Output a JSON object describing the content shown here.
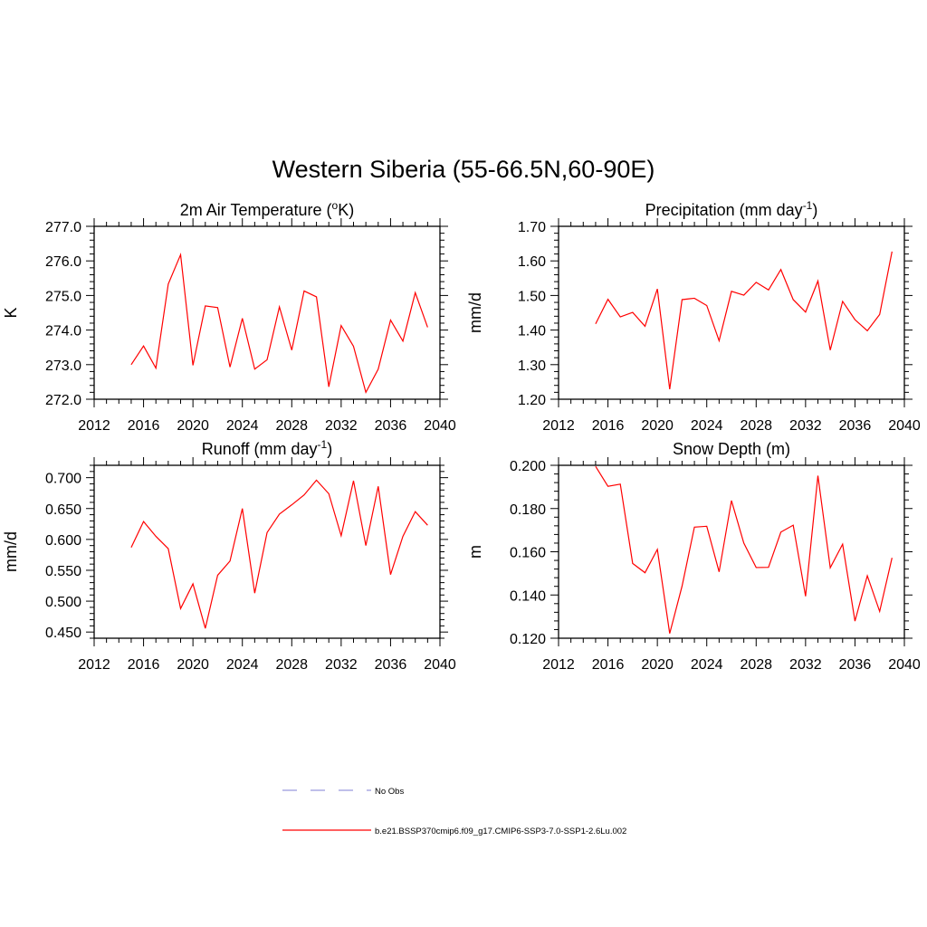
{
  "figure": {
    "title": "Western Siberia (55-66.5N,60-90E)"
  },
  "colors": {
    "series": "#ff0000",
    "obs": "#9999dd",
    "axis": "#000000"
  },
  "chart_data": [
    {
      "type": "line",
      "title": "2m Air Temperature (",
      "title_sup": "o",
      "title_after": "K)",
      "xlabel": "",
      "ylabel": "K",
      "xlim": [
        2012,
        2040
      ],
      "ylim": [
        272.0,
        277.0
      ],
      "xticks": [
        2012,
        2016,
        2020,
        2024,
        2028,
        2032,
        2036,
        2040
      ],
      "yticks": [
        "272.0",
        "273.0",
        "274.0",
        "275.0",
        "276.0",
        "277.0"
      ],
      "x": [
        2015,
        2016,
        2017,
        2018,
        2019,
        2020,
        2021,
        2022,
        2023,
        2024,
        2025,
        2026,
        2027,
        2028,
        2029,
        2030,
        2031,
        2032,
        2033,
        2034,
        2035,
        2036,
        2037,
        2038,
        2039
      ],
      "series": [
        {
          "name": "b.e21.BSSP370cmip6.f09_g17.CMIP6-SSP3-7.0-SSP1-2.6Lu.002",
          "values": [
            273.0,
            273.54,
            272.9,
            275.33,
            276.18,
            272.98,
            274.7,
            274.65,
            272.93,
            274.34,
            272.87,
            273.14,
            274.67,
            273.42,
            275.13,
            274.96,
            272.36,
            274.13,
            273.53,
            272.2,
            272.87,
            274.29,
            273.68,
            275.08,
            274.08
          ]
        }
      ]
    },
    {
      "type": "line",
      "title": "Precipitation (mm day",
      "title_sup": "-1",
      "title_after": ")",
      "xlabel": "",
      "ylabel": "mm/d",
      "xlim": [
        2012,
        2040
      ],
      "ylim": [
        1.2,
        1.7
      ],
      "xticks": [
        2012,
        2016,
        2020,
        2024,
        2028,
        2032,
        2036,
        2040
      ],
      "yticks": [
        "1.20",
        "1.30",
        "1.40",
        "1.50",
        "1.60",
        "1.70"
      ],
      "x": [
        2015,
        2016,
        2017,
        2018,
        2019,
        2020,
        2021,
        2022,
        2023,
        2024,
        2025,
        2026,
        2027,
        2028,
        2029,
        2030,
        2031,
        2032,
        2033,
        2034,
        2035,
        2036,
        2037,
        2038,
        2039
      ],
      "series": [
        {
          "name": "b.e21.BSSP370cmip6.f09_g17.CMIP6-SSP3-7.0-SSP1-2.6Lu.002",
          "values": [
            1.418,
            1.489,
            1.438,
            1.451,
            1.411,
            1.519,
            1.229,
            1.488,
            1.492,
            1.471,
            1.369,
            1.512,
            1.501,
            1.538,
            1.516,
            1.575,
            1.488,
            1.452,
            1.542,
            1.342,
            1.483,
            1.43,
            1.398,
            1.445,
            1.627
          ]
        }
      ]
    },
    {
      "type": "line",
      "title": "Runoff (mm day",
      "title_sup": "-1",
      "title_after": ")",
      "xlabel": "",
      "ylabel": "mm/d",
      "xlim": [
        2012,
        2040
      ],
      "ylim": [
        0.44,
        0.72
      ],
      "xticks": [
        2012,
        2016,
        2020,
        2024,
        2028,
        2032,
        2036,
        2040
      ],
      "yticks": [
        "0.450",
        "0.500",
        "0.550",
        "0.600",
        "0.650",
        "0.700"
      ],
      "x": [
        2015,
        2016,
        2017,
        2018,
        2019,
        2020,
        2021,
        2022,
        2023,
        2024,
        2025,
        2026,
        2027,
        2028,
        2029,
        2030,
        2031,
        2032,
        2033,
        2034,
        2035,
        2036,
        2037,
        2038,
        2039
      ],
      "series": [
        {
          "name": "b.e21.BSSP370cmip6.f09_g17.CMIP6-SSP3-7.0-SSP1-2.6Lu.002",
          "values": [
            0.587,
            0.629,
            0.605,
            0.585,
            0.488,
            0.528,
            0.456,
            0.542,
            0.565,
            0.65,
            0.513,
            0.611,
            0.641,
            0.656,
            0.672,
            0.696,
            0.674,
            0.606,
            0.695,
            0.59,
            0.686,
            0.543,
            0.605,
            0.645,
            0.623
          ]
        }
      ]
    },
    {
      "type": "line",
      "title": "Snow Depth (m)",
      "title_sup": "",
      "title_after": "",
      "xlabel": "",
      "ylabel": "m",
      "xlim": [
        2012,
        2040
      ],
      "ylim": [
        0.12,
        0.2
      ],
      "xticks": [
        2012,
        2016,
        2020,
        2024,
        2028,
        2032,
        2036,
        2040
      ],
      "yticks": [
        "0.120",
        "0.140",
        "0.160",
        "0.180",
        "0.200"
      ],
      "x": [
        2015,
        2016,
        2017,
        2018,
        2019,
        2020,
        2021,
        2022,
        2023,
        2024,
        2025,
        2026,
        2027,
        2028,
        2029,
        2030,
        2031,
        2032,
        2033,
        2034,
        2035,
        2036,
        2037,
        2038,
        2039
      ],
      "series": [
        {
          "name": "b.e21.BSSP370cmip6.f09_g17.CMIP6-SSP3-7.0-SSP1-2.6Lu.002",
          "values": [
            0.1995,
            0.1903,
            0.1913,
            0.1546,
            0.1503,
            0.1611,
            0.1222,
            0.1441,
            0.1714,
            0.1718,
            0.1507,
            0.1837,
            0.164,
            0.1527,
            0.1528,
            0.1691,
            0.1723,
            0.1394,
            0.1952,
            0.1526,
            0.1635,
            0.1279,
            0.1489,
            0.1324,
            0.1572
          ]
        }
      ]
    }
  ],
  "legend": {
    "items": [
      {
        "label": "No Obs",
        "style": "dashed"
      },
      {
        "label": "b.e21.BSSP370cmip6.f09_g17.CMIP6-SSP3-7.0-SSP1-2.6Lu.002",
        "style": "solid"
      }
    ]
  }
}
